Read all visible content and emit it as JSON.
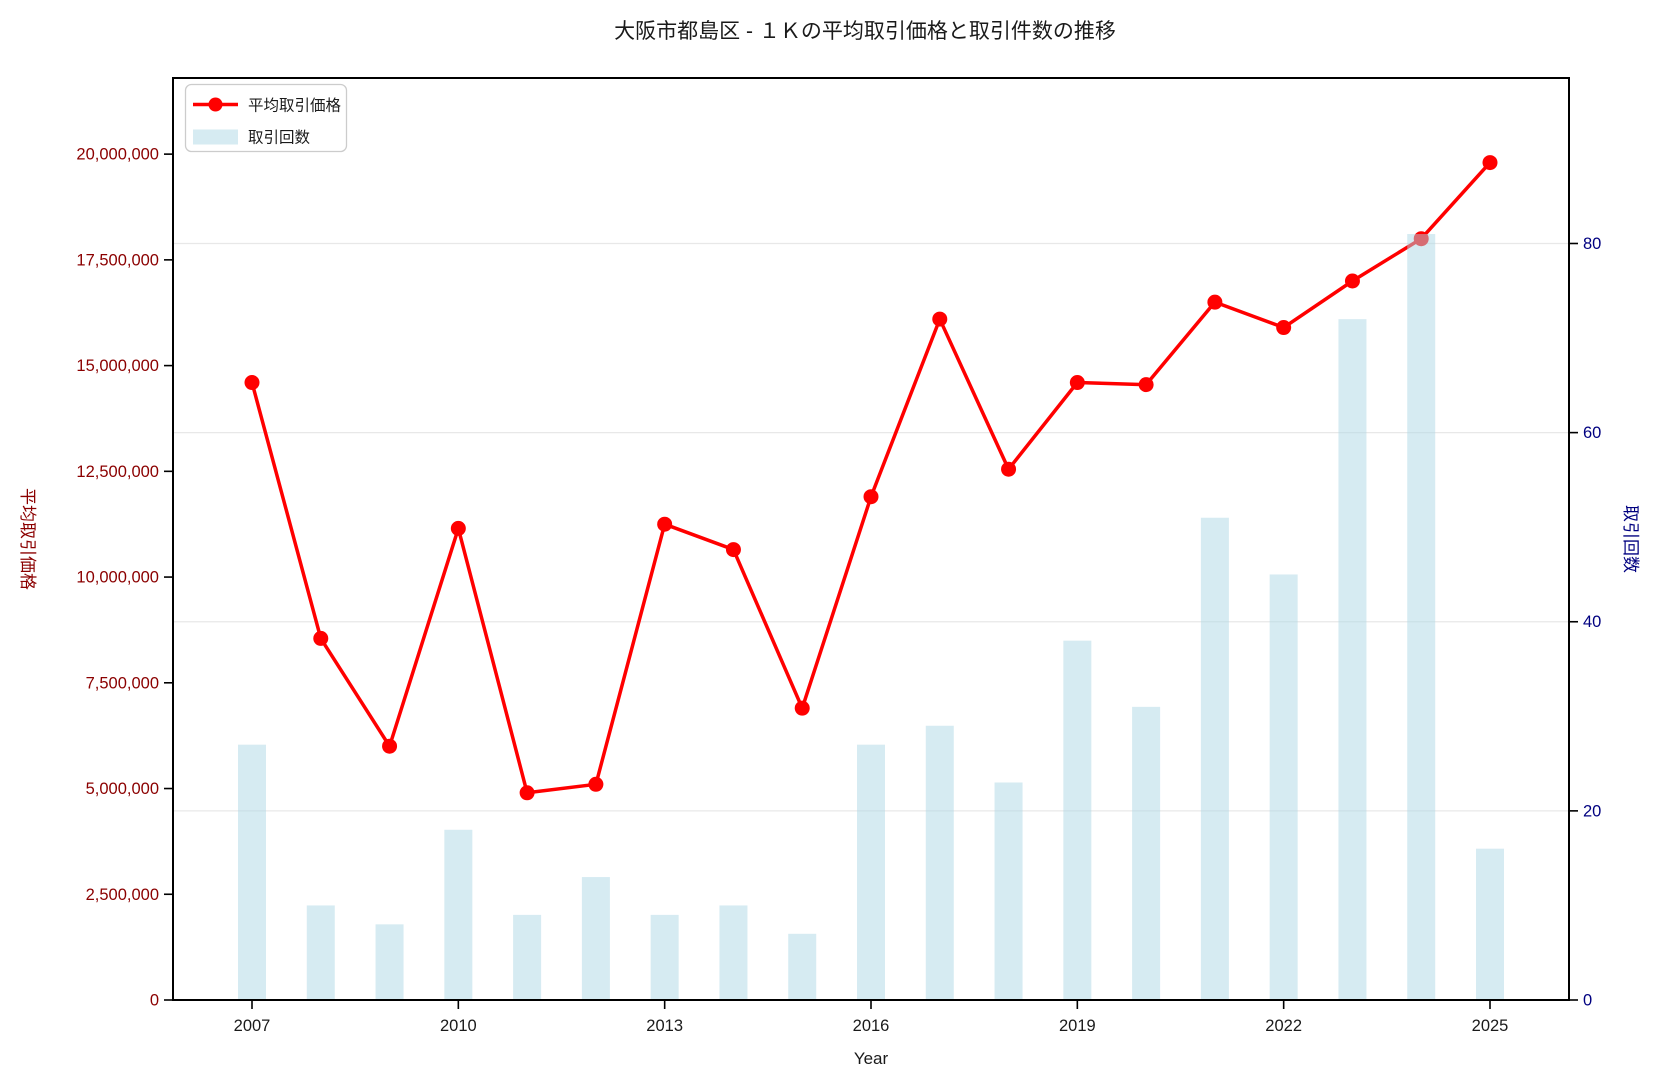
{
  "chart_data": {
    "type": "combo",
    "title": "大阪市都島区 - １Ｋの平均取引価格と取引件数の推移",
    "xlabel": "Year",
    "ylabel_left": "平均取引価格",
    "ylabel_right": "取引回数",
    "categories": [
      2007,
      2008,
      2009,
      2010,
      2011,
      2012,
      2013,
      2014,
      2015,
      2016,
      2017,
      2018,
      2019,
      2020,
      2021,
      2022,
      2023,
      2024,
      2025
    ],
    "series": [
      {
        "name": "平均取引価格",
        "type": "line",
        "axis": "left",
        "color": "#ff0000",
        "values": [
          14600000,
          8550000,
          6000000,
          11150000,
          4900000,
          5100000,
          11250000,
          10650000,
          6900000,
          11900000,
          16100000,
          12550000,
          14600000,
          14550000,
          16500000,
          15900000,
          17000000,
          18000000,
          19800000
        ]
      },
      {
        "name": "取引回数",
        "type": "bar",
        "axis": "right",
        "color": "#add8e6",
        "opacity": 0.5,
        "values": [
          27,
          10,
          8,
          18,
          9,
          13,
          9,
          10,
          7,
          27,
          29,
          23,
          38,
          31,
          51,
          45,
          72,
          81,
          16
        ]
      }
    ],
    "axes": {
      "left": {
        "ticks": [
          0,
          2500000,
          5000000,
          7500000,
          10000000,
          12500000,
          15000000,
          17500000,
          20000000
        ],
        "max": 21800000,
        "label_color": "#8b0000"
      },
      "right": {
        "ticks": [
          0,
          20,
          40,
          60,
          80
        ],
        "max": 97.5,
        "label_color": "#000080"
      },
      "x": {
        "ticks": [
          2007,
          2010,
          2013,
          2016,
          2019,
          2022,
          2025
        ],
        "label_color": "#1a1a1a"
      }
    },
    "legend": {
      "position": "upper left"
    },
    "grid": {
      "show": true,
      "color": "#e8e8e8"
    }
  }
}
